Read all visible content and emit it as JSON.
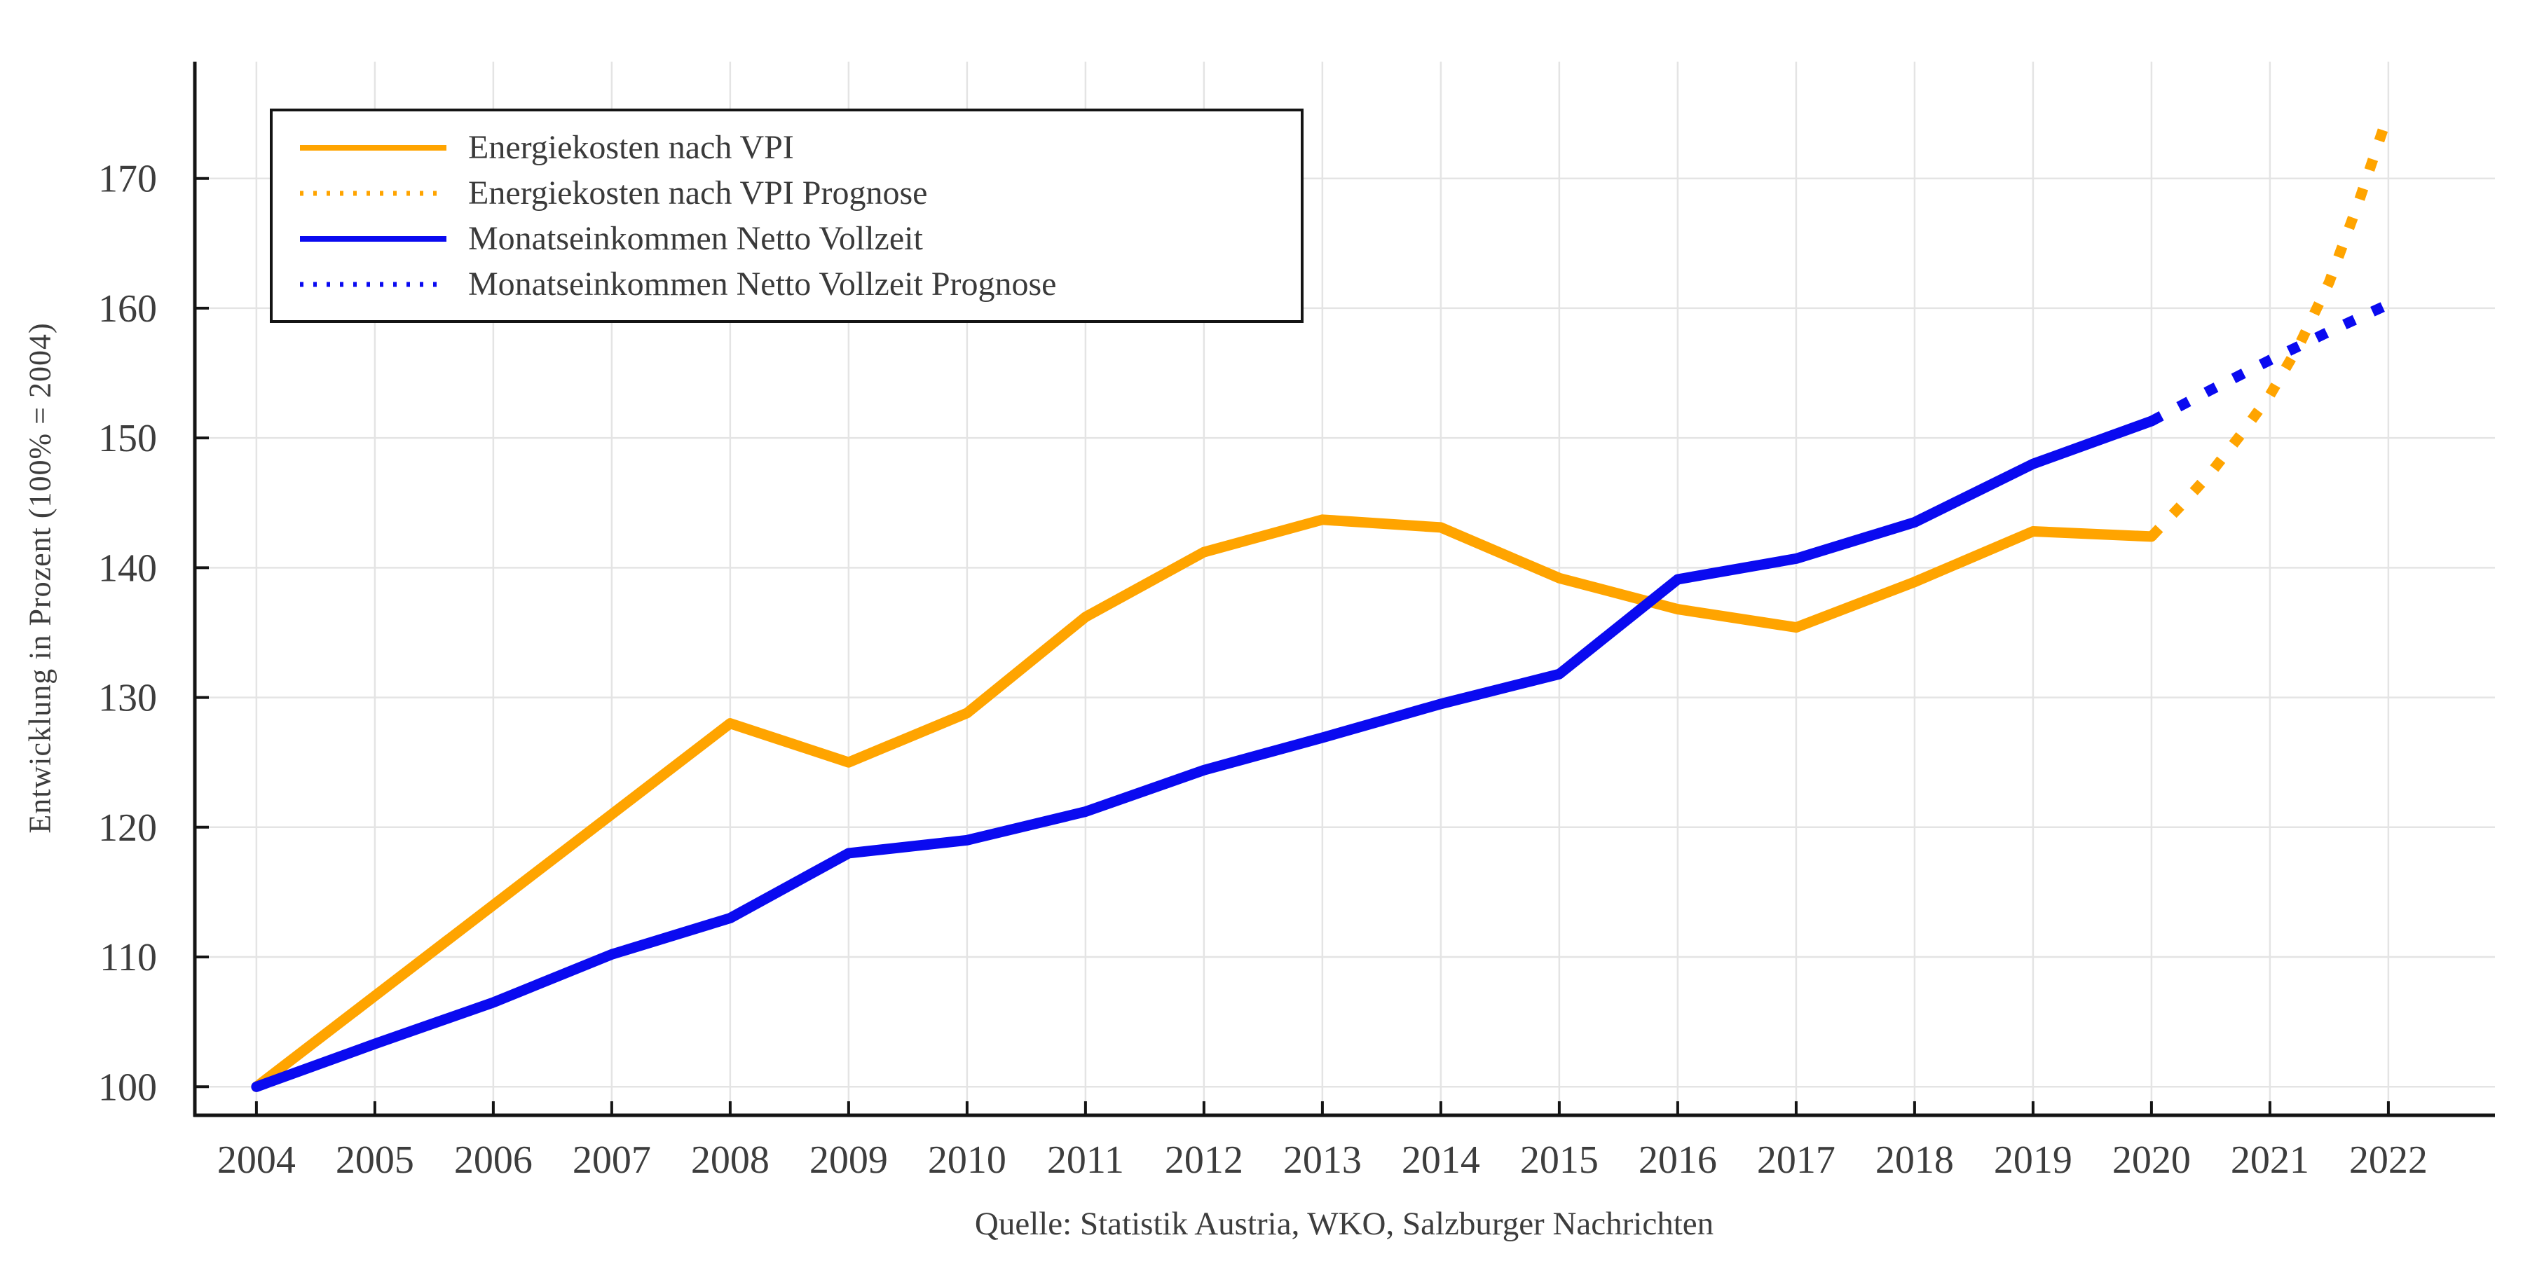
{
  "page": {
    "background": "#ffffff"
  },
  "chart_data": {
    "type": "line",
    "title": "",
    "ylabel": "Entwicklung in Prozent (100% = 2004)",
    "caption": "Quelle: Statistik Austria, WKO, Salzburger Nachrichten",
    "x_ticks": [
      2004,
      2005,
      2006,
      2007,
      2008,
      2009,
      2010,
      2011,
      2012,
      2013,
      2014,
      2015,
      2016,
      2017,
      2018,
      2019,
      2020,
      2021,
      2022
    ],
    "y_ticks": [
      100,
      110,
      120,
      130,
      140,
      150,
      160,
      170
    ],
    "xlim": [
      2003.48,
      2022.9
    ],
    "ylim": [
      97.8,
      179.0
    ],
    "grid": true,
    "legend_position": "top-left",
    "colors": {
      "grid": "#e4e4e4",
      "spine": "#141414",
      "text": "#3d3d3d",
      "orange": "#FFA400",
      "blue": "#0A0AF0"
    },
    "series": [
      {
        "name": "Energiekosten nach VPI",
        "color": "#FFA400",
        "style": "solid",
        "points": [
          [
            2004,
            100
          ],
          [
            2005,
            107
          ],
          [
            2006,
            114
          ],
          [
            2007,
            121
          ],
          [
            2008,
            128
          ],
          [
            2009,
            125
          ],
          [
            2010,
            128.8
          ],
          [
            2011,
            136.2
          ],
          [
            2012,
            141.2
          ],
          [
            2013,
            143.7
          ],
          [
            2014,
            143.1
          ],
          [
            2015,
            139.2
          ],
          [
            2016,
            136.8
          ],
          [
            2017,
            135.4
          ],
          [
            2018,
            138.9
          ],
          [
            2019,
            142.8
          ],
          [
            2020,
            142.4
          ]
        ]
      },
      {
        "name": "Energiekosten nach VPI Prognose",
        "color": "#FFA400",
        "style": "dotted",
        "points": [
          [
            2020,
            142.4
          ],
          [
            2020.25,
            144.8
          ],
          [
            2020.5,
            147.3
          ],
          [
            2020.75,
            150.2
          ],
          [
            2021,
            153.3
          ],
          [
            2021.25,
            157.2
          ],
          [
            2021.5,
            162.0
          ],
          [
            2021.75,
            168.2
          ],
          [
            2022,
            175.0
          ]
        ]
      },
      {
        "name": "Monatseinkommen Netto Vollzeit",
        "color": "#0A0AF0",
        "style": "solid",
        "points": [
          [
            2004,
            100
          ],
          [
            2005,
            103.3
          ],
          [
            2006,
            106.5
          ],
          [
            2007,
            110.2
          ],
          [
            2008,
            113
          ],
          [
            2009,
            118
          ],
          [
            2010,
            119
          ],
          [
            2011,
            121.2
          ],
          [
            2012,
            124.4
          ],
          [
            2013,
            126.9
          ],
          [
            2014,
            129.5
          ],
          [
            2015,
            131.8
          ],
          [
            2016,
            139.1
          ],
          [
            2017,
            140.7
          ],
          [
            2018,
            143.5
          ],
          [
            2019,
            148
          ],
          [
            2020,
            151.3
          ]
        ]
      },
      {
        "name": "Monatseinkommen Netto Vollzeit Prognose",
        "color": "#0A0AF0",
        "style": "dotted",
        "points": [
          [
            2020,
            151.3
          ],
          [
            2020.5,
            153.7
          ],
          [
            2021,
            156.0
          ],
          [
            2021.5,
            158.2
          ],
          [
            2022,
            160.3
          ]
        ]
      }
    ]
  }
}
